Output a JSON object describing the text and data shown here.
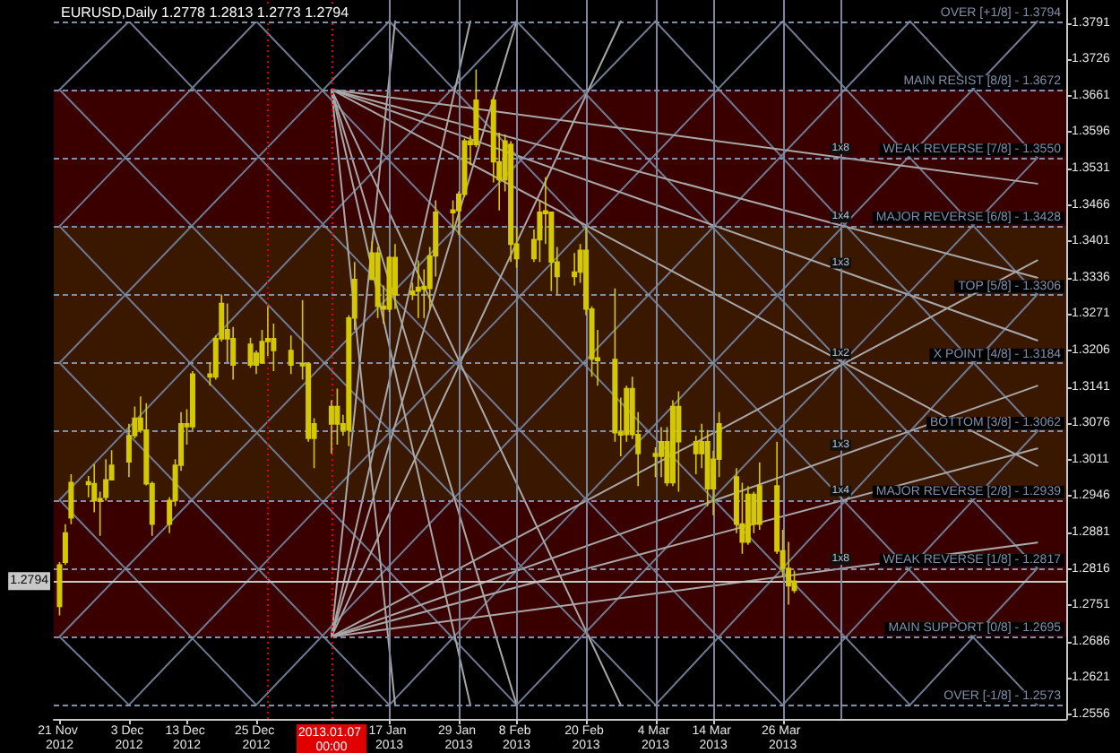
{
  "chart_data": {
    "type": "candlestick",
    "title": "EURUSD,Daily 1.2778 1.2813 1.2773 1.2794",
    "color": "#d4c800",
    "grid": false,
    "marker": "none",
    "x": [
      "2012-11-21",
      "2012-11-22",
      "2012-11-23",
      "2012-11-26",
      "2012-11-27",
      "2012-11-28",
      "2012-11-29",
      "2012-11-30",
      "2012-12-03",
      "2012-12-04",
      "2012-12-05",
      "2012-12-06",
      "2012-12-07",
      "2012-12-10",
      "2012-12-11",
      "2012-12-12",
      "2012-12-13",
      "2012-12-14",
      "2012-12-17",
      "2012-12-18",
      "2012-12-19",
      "2012-12-20",
      "2012-12-21",
      "2012-12-24",
      "2012-12-25",
      "2012-12-26",
      "2012-12-27",
      "2012-12-28",
      "2012-12-31",
      "2013-01-02",
      "2013-01-03",
      "2013-01-04",
      "2013-01-07",
      "2013-01-08",
      "2013-01-09",
      "2013-01-10",
      "2013-01-11",
      "2013-01-14",
      "2013-01-15",
      "2013-01-16",
      "2013-01-17",
      "2013-01-18",
      "2013-01-21",
      "2013-01-22",
      "2013-01-23",
      "2013-01-24",
      "2013-01-25",
      "2013-01-28",
      "2013-01-29",
      "2013-01-30",
      "2013-01-31",
      "2013-02-01",
      "2013-02-04",
      "2013-02-05",
      "2013-02-06",
      "2013-02-07",
      "2013-02-08",
      "2013-02-11",
      "2013-02-12",
      "2013-02-13",
      "2013-02-14",
      "2013-02-15",
      "2013-02-18",
      "2013-02-19",
      "2013-02-20",
      "2013-02-21",
      "2013-02-22",
      "2013-02-25",
      "2013-02-26",
      "2013-02-27",
      "2013-02-28",
      "2013-03-01",
      "2013-03-04",
      "2013-03-05",
      "2013-03-06",
      "2013-03-07",
      "2013-03-08",
      "2013-03-11",
      "2013-03-12",
      "2013-03-13",
      "2013-03-14",
      "2013-03-15",
      "2013-03-18",
      "2013-03-19",
      "2013-03-20",
      "2013-03-21",
      "2013-03-22",
      "2013-03-25",
      "2013-03-26",
      "2013-03-27",
      "2013-03-28"
    ],
    "ohlc": [
      [
        1.2749,
        1.2828,
        1.2733,
        1.2823
      ],
      [
        1.2828,
        1.2896,
        1.2823,
        1.288
      ],
      [
        1.2907,
        1.2985,
        1.2896,
        1.297
      ],
      [
        1.297,
        1.2982,
        1.2944,
        1.2968
      ],
      [
        1.2968,
        1.3003,
        1.2917,
        1.2938
      ],
      [
        1.2938,
        1.2954,
        1.2875,
        1.294
      ],
      [
        1.2944,
        1.3012,
        1.2938,
        1.2975
      ],
      [
        1.2975,
        1.3028,
        1.2975,
        1.3001
      ],
      [
        1.3007,
        1.3075,
        1.298,
        1.3054
      ],
      [
        1.3054,
        1.3106,
        1.3049,
        1.3085
      ],
      [
        1.3085,
        1.3124,
        1.3059,
        1.3064
      ],
      [
        1.3064,
        1.3112,
        1.2965,
        1.2968
      ],
      [
        1.2968,
        1.2972,
        1.2875,
        1.2896
      ],
      [
        1.2896,
        1.2944,
        1.288,
        1.2938
      ],
      [
        1.2938,
        1.3012,
        1.2928,
        1.3001
      ],
      [
        1.3001,
        1.3096,
        1.2991,
        1.3075
      ],
      [
        1.3075,
        1.3101,
        1.3038,
        1.307
      ],
      [
        1.307,
        1.3169,
        1.3064,
        1.3164
      ],
      [
        1.3164,
        1.3185,
        1.3143,
        1.3159
      ],
      [
        1.3159,
        1.3233,
        1.3154,
        1.3227
      ],
      [
        1.3227,
        1.3306,
        1.3222,
        1.329
      ],
      [
        1.3243,
        1.329,
        1.3185,
        1.3227
      ],
      [
        1.3227,
        1.3248,
        1.3154,
        1.318
      ],
      [
        1.318,
        1.3229,
        1.3175,
        1.3217
      ],
      [
        1.3201,
        1.3206,
        1.3164,
        1.318
      ],
      [
        1.3185,
        1.3243,
        1.3182,
        1.3222
      ],
      [
        1.3222,
        1.3285,
        1.3196,
        1.3227
      ],
      [
        1.3227,
        1.3254,
        1.3169,
        1.3206
      ],
      [
        1.3206,
        1.3233,
        1.3164,
        1.318
      ],
      [
        1.318,
        1.3296,
        1.3154,
        1.3182
      ],
      [
        1.3182,
        1.3185,
        1.3043,
        1.3049
      ],
      [
        1.3049,
        1.3085,
        1.2996,
        1.3075
      ],
      [
        1.3075,
        1.3117,
        1.3022,
        1.3106
      ],
      [
        1.3106,
        1.3138,
        1.3038,
        1.3075
      ],
      [
        1.3075,
        1.3091,
        1.3054,
        1.3064
      ],
      [
        1.3064,
        1.3269,
        1.3035,
        1.3264
      ],
      [
        1.3264,
        1.3364,
        1.3243,
        1.3333
      ],
      [
        1.3333,
        1.3401,
        1.3333,
        1.338
      ],
      [
        1.338,
        1.3391,
        1.3264,
        1.3285
      ],
      [
        1.3285,
        1.3322,
        1.3254,
        1.328
      ],
      [
        1.328,
        1.3375,
        1.3275,
        1.3372
      ],
      [
        1.3372,
        1.3396,
        1.328,
        1.3306
      ],
      [
        1.3306,
        1.3327,
        1.3296,
        1.3312
      ],
      [
        1.3312,
        1.3367,
        1.3264,
        1.3319
      ],
      [
        1.3319,
        1.3351,
        1.3264,
        1.3317
      ],
      [
        1.3317,
        1.3391,
        1.328,
        1.3375
      ],
      [
        1.3375,
        1.3474,
        1.3338,
        1.3453
      ],
      [
        1.3453,
        1.3474,
        1.3422,
        1.3456
      ],
      [
        1.3456,
        1.349,
        1.3412,
        1.3485
      ],
      [
        1.3485,
        1.3585,
        1.348,
        1.358
      ],
      [
        1.358,
        1.359,
        1.3537,
        1.3574
      ],
      [
        1.3574,
        1.3708,
        1.3569,
        1.3653
      ],
      [
        1.3653,
        1.3659,
        1.3506,
        1.3543
      ],
      [
        1.3543,
        1.3595,
        1.3456,
        1.3511
      ],
      [
        1.3511,
        1.3592,
        1.349,
        1.358
      ],
      [
        1.3574,
        1.358,
        1.3364,
        1.3396
      ],
      [
        1.3396,
        1.3427,
        1.3354,
        1.337
      ],
      [
        1.337,
        1.3422,
        1.3364,
        1.3404
      ],
      [
        1.3404,
        1.3474,
        1.3364,
        1.3453
      ],
      [
        1.3453,
        1.3516,
        1.3396,
        1.3453
      ],
      [
        1.3453,
        1.3453,
        1.3312,
        1.3364
      ],
      [
        1.3364,
        1.3391,
        1.3306,
        1.3338
      ],
      [
        1.3338,
        1.338,
        1.3322,
        1.3346
      ],
      [
        1.3346,
        1.3396,
        1.3327,
        1.3385
      ],
      [
        1.3385,
        1.3427,
        1.3269,
        1.328
      ],
      [
        1.328,
        1.3285,
        1.3159,
        1.3191
      ],
      [
        1.3191,
        1.3243,
        1.3143,
        1.319
      ],
      [
        1.319,
        1.3317,
        1.3043,
        1.3059
      ],
      [
        1.3059,
        1.3122,
        1.3017,
        1.3056
      ],
      [
        1.3056,
        1.3143,
        1.3043,
        1.3138
      ],
      [
        1.3138,
        1.3159,
        1.3048,
        1.3056
      ],
      [
        1.3056,
        1.3096,
        1.2964,
        1.3022
      ],
      [
        1.3022,
        1.3033,
        1.298,
        1.3017
      ],
      [
        1.3017,
        1.3069,
        1.298,
        1.3043
      ],
      [
        1.3043,
        1.3069,
        1.2964,
        1.297
      ],
      [
        1.297,
        1.3117,
        1.2964,
        1.3106
      ],
      [
        1.3106,
        1.3133,
        1.2954,
        1.3043
      ],
      [
        1.3043,
        1.3054,
        1.2985,
        1.3022
      ],
      [
        1.3022,
        1.3075,
        1.2996,
        1.3043
      ],
      [
        1.3043,
        1.3064,
        1.2928,
        1.2959
      ],
      [
        1.2959,
        1.3027,
        1.2912,
        1.3012
      ],
      [
        1.3012,
        1.3096,
        1.298,
        1.3075
      ],
      [
        1.298,
        1.2996,
        1.288,
        1.2896
      ],
      [
        1.2896,
        1.297,
        1.2843,
        1.2864
      ],
      [
        1.2864,
        1.2964,
        1.2859,
        1.2949
      ],
      [
        1.2949,
        1.2954,
        1.288,
        1.2896
      ],
      [
        1.2896,
        1.3006,
        1.2886,
        1.2964
      ],
      [
        1.2964,
        1.3043,
        1.2843,
        1.2848
      ],
      [
        1.2848,
        1.2886,
        1.2801,
        1.2817
      ],
      [
        1.2817,
        1.2864,
        1.2752,
        1.2786
      ],
      [
        1.2778,
        1.2813,
        1.2773,
        1.2794
      ]
    ],
    "xlim": [
      "2012-11-20",
      "2013-05-14"
    ],
    "xticks": [
      {
        "value": "2012-11-21",
        "label": "21 Nov 2012"
      },
      {
        "value": "2012-12-03",
        "label": "3 Dec 2012"
      },
      {
        "value": "2012-12-13",
        "label": "13 Dec 2012"
      },
      {
        "value": "2012-12-25",
        "label": "25 Dec 2012"
      },
      {
        "value": "2013-01-17",
        "label": "17 Jan 2013"
      },
      {
        "value": "2013-01-29",
        "label": "29 Jan 2013"
      },
      {
        "value": "2013-02-08",
        "label": "8 Feb 2013"
      },
      {
        "value": "2013-02-20",
        "label": "20 Feb 2013"
      },
      {
        "value": "2013-03-04",
        "label": "4 Mar 2013"
      },
      {
        "value": "2013-03-14",
        "label": "14 Mar 2013"
      },
      {
        "value": "2013-03-26",
        "label": "26 Mar 2013"
      }
    ],
    "ylim": [
      1.2548,
      1.3832
    ],
    "yticks": [
      1.2556,
      1.2621,
      1.2686,
      1.2751,
      1.2816,
      1.2881,
      1.2946,
      1.3011,
      1.3076,
      1.3141,
      1.3206,
      1.3271,
      1.3336,
      1.3401,
      1.3466,
      1.3531,
      1.3596,
      1.3661,
      1.3726,
      1.3791
    ],
    "bands": [
      {
        "axis": "y",
        "from": 1.2695,
        "to": 1.3672,
        "color": "#3a0000"
      },
      {
        "axis": "y",
        "from": 1.2939,
        "to": 1.3428,
        "color": "#3a1800"
      }
    ],
    "ref_lines": [
      {
        "axis": "y",
        "value": 1.3794,
        "label": "OVER [+1/8] - 1.3794",
        "color": "#8190a8",
        "line_style": "dashed"
      },
      {
        "axis": "y",
        "value": 1.3672,
        "label": "MAIN RESIST [8/8] - 1.3672",
        "color": "#8190a8",
        "line_style": "dashed"
      },
      {
        "axis": "y",
        "value": 1.355,
        "label": "WEAK REVERSE [7/8] - 1.3550",
        "color": "#8190a8",
        "line_style": "dashed"
      },
      {
        "axis": "y",
        "value": 1.3428,
        "label": "MAJOR REVERSE [6/8] - 1.3428",
        "color": "#8190a8",
        "line_style": "dashed"
      },
      {
        "axis": "y",
        "value": 1.3306,
        "label": "TOP [5/8] - 1.3306",
        "color": "#8190a8",
        "line_style": "dashed"
      },
      {
        "axis": "y",
        "value": 1.3184,
        "label": "X POINT [4/8] - 1.3184",
        "color": "#8190a8",
        "line_style": "dashed"
      },
      {
        "axis": "y",
        "value": 1.3062,
        "label": "BOTTOM [3/8] - 1.3062",
        "color": "#8190a8",
        "line_style": "dashed"
      },
      {
        "axis": "y",
        "value": 1.2939,
        "label": "MAJOR REVERSE [2/8] - 1.2939",
        "color": "#8190a8",
        "line_style": "dashed"
      },
      {
        "axis": "y",
        "value": 1.2817,
        "label": "WEAK REVERSE [1/8] - 1.2817",
        "color": "#8190a8",
        "line_style": "dashed"
      },
      {
        "axis": "y",
        "value": 1.2695,
        "label": "MAIN SUPPORT [0/8] - 1.2695",
        "color": "#8190a8",
        "line_style": "dashed"
      },
      {
        "axis": "y",
        "value": 1.2573,
        "label": "OVER [-1/8] - 1.2573",
        "color": "#8190a8",
        "line_style": "dashed"
      },
      {
        "axis": "y",
        "value": 1.2794,
        "label": "1.2794",
        "color": "#c8c8c8",
        "line_style": "solid"
      },
      {
        "axis": "x",
        "value": "2012-12-27",
        "color": "#d00000",
        "line_style": "dotted"
      },
      {
        "axis": "x",
        "value": "2013-01-07",
        "label": "2013.01.07 00:00",
        "color": "#e00000",
        "line_style": "dotted"
      },
      {
        "axis": "x",
        "value": "2013-01-17",
        "color": "#7d879c",
        "line_style": "solid"
      },
      {
        "axis": "x",
        "value": "2013-01-29",
        "color": "#7d879c",
        "line_style": "solid"
      },
      {
        "axis": "x",
        "value": "2013-02-08",
        "color": "#7d879c",
        "line_style": "solid"
      },
      {
        "axis": "x",
        "value": "2013-02-20",
        "color": "#7d879c",
        "line_style": "solid"
      },
      {
        "axis": "x",
        "value": "2013-03-04",
        "color": "#7d879c",
        "line_style": "solid"
      },
      {
        "axis": "x",
        "value": "2013-03-14",
        "color": "#7d879c",
        "line_style": "solid"
      },
      {
        "axis": "x",
        "value": "2013-03-26",
        "color": "#7d879c",
        "line_style": "solid"
      },
      {
        "axis": "x",
        "value": "2013-04-05",
        "color": "#7d879c",
        "line_style": "solid"
      }
    ],
    "annotations": [
      {
        "text": "1x8",
        "x": "2013-04-05",
        "y": 1.355
      },
      {
        "text": "1x4",
        "x": "2013-04-05",
        "y": 1.3428
      },
      {
        "text": "1x3",
        "x": "2013-04-05",
        "y": 1.3346
      },
      {
        "text": "1x2",
        "x": "2013-04-05",
        "y": 1.3184
      },
      {
        "text": "1x3",
        "x": "2013-04-05",
        "y": 1.3021
      },
      {
        "text": "1x4",
        "x": "2013-04-05",
        "y": 1.2939
      },
      {
        "text": "1x8",
        "x": "2013-04-05",
        "y": 1.2817
      }
    ],
    "series": [
      {
        "type": "line",
        "color": "#6f7a90",
        "x": [
          "2012-11-21",
          "2012-12-03"
        ],
        "values": [
          1.3672,
          1.3794
        ]
      },
      {
        "type": "line",
        "color": "#6f7a90",
        "x": [
          "2012-11-21",
          "2012-12-25"
        ],
        "values": [
          1.3428,
          1.3794
        ]
      },
      {
        "type": "line",
        "color": "#6f7a90",
        "x": [
          "2012-11-21",
          "2013-01-17"
        ],
        "values": [
          1.3184,
          1.3794
        ]
      },
      {
        "type": "line",
        "color": "#6f7a90",
        "x": [
          "2012-11-21",
          "2013-02-08"
        ],
        "values": [
          1.2939,
          1.3794
        ]
      },
      {
        "type": "line",
        "color": "#6f7a90",
        "x": [
          "2012-11-21",
          "2013-03-04"
        ],
        "values": [
          1.2695,
          1.3794
        ]
      },
      {
        "type": "line",
        "color": "#6f7a90",
        "x": [
          "2012-12-03",
          "2013-03-26"
        ],
        "values": [
          1.2573,
          1.3794
        ]
      },
      {
        "type": "line",
        "color": "#6f7a90",
        "x": [
          "2012-12-25",
          "2013-04-17"
        ],
        "values": [
          1.2573,
          1.3794
        ]
      },
      {
        "type": "line",
        "color": "#6f7a90",
        "x": [
          "2013-01-17",
          "2013-05-09"
        ],
        "values": [
          1.2573,
          1.3794
        ]
      },
      {
        "type": "line",
        "color": "#6f7a90",
        "x": [
          "2013-02-08",
          "2013-05-09"
        ],
        "values": [
          1.2573,
          1.355
        ]
      },
      {
        "type": "line",
        "color": "#6f7a90",
        "x": [
          "2013-03-04",
          "2013-05-09"
        ],
        "values": [
          1.2573,
          1.3306
        ]
      },
      {
        "type": "line",
        "color": "#6f7a90",
        "x": [
          "2013-03-26",
          "2013-05-09"
        ],
        "values": [
          1.2573,
          1.3062
        ]
      },
      {
        "type": "line",
        "color": "#6f7a90",
        "x": [
          "2013-04-17",
          "2013-05-09"
        ],
        "values": [
          1.2573,
          1.2817
        ]
      },
      {
        "type": "line",
        "color": "#6f7a90",
        "x": [
          "2012-11-21",
          "2012-12-03"
        ],
        "values": [
          1.2695,
          1.2573
        ]
      },
      {
        "type": "line",
        "color": "#6f7a90",
        "x": [
          "2012-11-21",
          "2012-12-25"
        ],
        "values": [
          1.2939,
          1.2573
        ]
      },
      {
        "type": "line",
        "color": "#6f7a90",
        "x": [
          "2012-11-21",
          "2013-01-17"
        ],
        "values": [
          1.3184,
          1.2573
        ]
      },
      {
        "type": "line",
        "color": "#6f7a90",
        "x": [
          "2012-11-21",
          "2013-02-08"
        ],
        "values": [
          1.3428,
          1.2573
        ]
      },
      {
        "type": "line",
        "color": "#6f7a90",
        "x": [
          "2012-11-21",
          "2013-03-04"
        ],
        "values": [
          1.3672,
          1.2573
        ]
      },
      {
        "type": "line",
        "color": "#6f7a90",
        "x": [
          "2012-12-03",
          "2013-03-26"
        ],
        "values": [
          1.3794,
          1.2573
        ]
      },
      {
        "type": "line",
        "color": "#6f7a90",
        "x": [
          "2012-12-25",
          "2013-04-17"
        ],
        "values": [
          1.3794,
          1.2573
        ]
      },
      {
        "type": "line",
        "color": "#6f7a90",
        "x": [
          "2013-01-17",
          "2013-05-09"
        ],
        "values": [
          1.3794,
          1.2573
        ]
      },
      {
        "type": "line",
        "color": "#6f7a90",
        "x": [
          "2013-02-08",
          "2013-05-09"
        ],
        "values": [
          1.3794,
          1.2817
        ]
      },
      {
        "type": "line",
        "color": "#6f7a90",
        "x": [
          "2013-03-04",
          "2013-05-09"
        ],
        "values": [
          1.3794,
          1.3062
        ]
      },
      {
        "type": "line",
        "color": "#6f7a90",
        "x": [
          "2013-03-26",
          "2013-05-09"
        ],
        "values": [
          1.3794,
          1.3306
        ]
      },
      {
        "type": "line",
        "color": "#6f7a90",
        "x": [
          "2013-04-17",
          "2013-05-09"
        ],
        "values": [
          1.3794,
          1.355
        ]
      },
      {
        "type": "line",
        "color": "#a8a8a8",
        "x": [
          "2013-01-07",
          "2013-05-09"
        ],
        "values": [
          1.3672,
          1.3504
        ]
      },
      {
        "type": "line",
        "color": "#a8a8a8",
        "x": [
          "2013-01-07",
          "2013-05-09"
        ],
        "values": [
          1.3672,
          1.3336
        ]
      },
      {
        "type": "line",
        "color": "#a8a8a8",
        "x": [
          "2013-01-07",
          "2013-05-09"
        ],
        "values": [
          1.3672,
          1.3224
        ]
      },
      {
        "type": "line",
        "color": "#a8a8a8",
        "x": [
          "2013-01-07",
          "2013-05-09"
        ],
        "values": [
          1.3672,
          1.3
        ]
      },
      {
        "type": "line",
        "color": "#a8a8a8",
        "x": [
          "2013-01-07",
          "2013-02-26"
        ],
        "values": [
          1.3672,
          1.2573
        ]
      },
      {
        "type": "line",
        "color": "#a8a8a8",
        "x": [
          "2013-01-07",
          "2013-02-08"
        ],
        "values": [
          1.3672,
          1.2573
        ]
      },
      {
        "type": "line",
        "color": "#a8a8a8",
        "x": [
          "2013-01-07",
          "2013-01-31"
        ],
        "values": [
          1.3672,
          1.2573
        ]
      },
      {
        "type": "line",
        "color": "#a8a8a8",
        "x": [
          "2013-01-07",
          "2013-01-18"
        ],
        "values": [
          1.3672,
          1.2573
        ]
      },
      {
        "type": "line",
        "color": "#a8a8a8",
        "x": [
          "2013-01-07",
          "2013-05-09"
        ],
        "values": [
          1.2695,
          1.2863
        ]
      },
      {
        "type": "line",
        "color": "#a8a8a8",
        "x": [
          "2013-01-07",
          "2013-05-09"
        ],
        "values": [
          1.2695,
          1.3031
        ]
      },
      {
        "type": "line",
        "color": "#a8a8a8",
        "x": [
          "2013-01-07",
          "2013-05-09"
        ],
        "values": [
          1.2695,
          1.3143
        ]
      },
      {
        "type": "line",
        "color": "#a8a8a8",
        "x": [
          "2013-01-07",
          "2013-05-09"
        ],
        "values": [
          1.2695,
          1.3367
        ]
      },
      {
        "type": "line",
        "color": "#a8a8a8",
        "x": [
          "2013-01-07",
          "2013-02-26"
        ],
        "values": [
          1.2695,
          1.3794
        ]
      },
      {
        "type": "line",
        "color": "#a8a8a8",
        "x": [
          "2013-01-07",
          "2013-02-08"
        ],
        "values": [
          1.2695,
          1.3794
        ]
      },
      {
        "type": "line",
        "color": "#a8a8a8",
        "x": [
          "2013-01-07",
          "2013-01-31"
        ],
        "values": [
          1.2695,
          1.3794
        ]
      },
      {
        "type": "line",
        "color": "#a8a8a8",
        "x": [
          "2013-01-07",
          "2013-01-18"
        ],
        "values": [
          1.2695,
          1.3794
        ]
      }
    ]
  }
}
